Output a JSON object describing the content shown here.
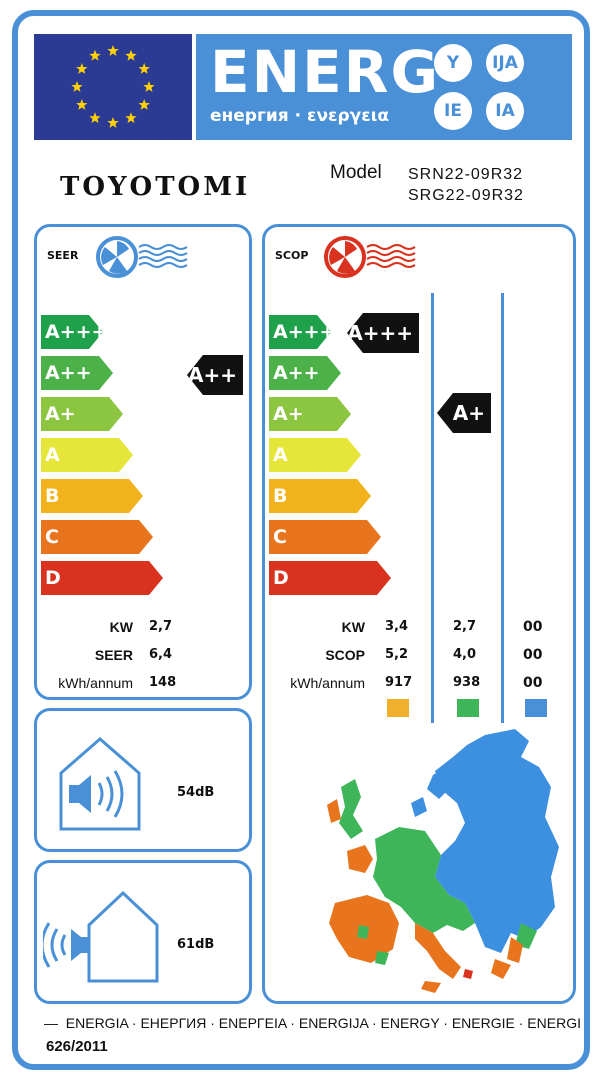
{
  "header": {
    "energy_word": "ENERG",
    "energy_sub": "енергия · ενεργεια",
    "suffixes": [
      "Y",
      "IJA",
      "IE",
      "IA"
    ]
  },
  "brand": "TOYOTOMI",
  "model": {
    "label": "Model",
    "values": [
      "SRN22-09R32",
      "SRG22-09R32"
    ]
  },
  "seer": {
    "title": "SEER",
    "classes": [
      "A+++",
      "A++",
      "A+",
      "A",
      "B",
      "C",
      "D"
    ],
    "class_colors": [
      "#1fa04a",
      "#4db14a",
      "#8cc540",
      "#e6e63a",
      "#f2b21b",
      "#e8741d",
      "#d9331f"
    ],
    "rating": "A++",
    "rows": [
      {
        "label": "KW",
        "value": "2,7"
      },
      {
        "label": "SEER",
        "value": "6,4"
      },
      {
        "label": "kWh/annum",
        "value": "148"
      }
    ]
  },
  "scop": {
    "title": "SCOP",
    "classes": [
      "A+++",
      "A++",
      "A+",
      "A",
      "B",
      "C",
      "D"
    ],
    "ratings": [
      "A+++",
      "A+"
    ],
    "rows": [
      {
        "label": "KW",
        "values": [
          "3,4",
          "2,7",
          "00"
        ]
      },
      {
        "label": "SCOP",
        "values": [
          "5,2",
          "4,0",
          "00"
        ]
      },
      {
        "label": "kWh/annum",
        "values": [
          "917",
          "938",
          "00"
        ]
      }
    ],
    "zone_colors": [
      "#f0b02c",
      "#3fb55a",
      "#4a90d6"
    ]
  },
  "noise": {
    "indoor": "54dB",
    "outdoor": "61dB"
  },
  "footer": {
    "languages": "ENERGIA · ЕНЕРГИЯ · ΕΝΕΡΓΕΙΑ · ENERGIJA · ENERGY · ENERGIE · ENERGI",
    "regulation": "626/2011"
  }
}
